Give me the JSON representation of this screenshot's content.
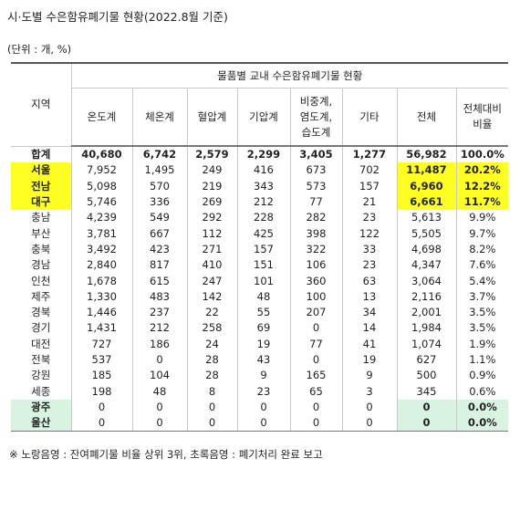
{
  "header": {
    "title": "시·도별 수은함유폐기물 현황(2022.8월 기준)",
    "unit": "(단위 : 개, %)"
  },
  "table": {
    "region_header": "지역",
    "group_header": "물품별 교내 수은함유폐기물 현황",
    "columns": [
      "온도계",
      "체온계",
      "혈압계",
      "기압계",
      "비중계,\n염도계,\n습도계",
      "기타",
      "전체",
      "전체대비\n비율"
    ],
    "rows": [
      [
        "합계",
        "40,680",
        "6,742",
        "2,579",
        "2,299",
        "3,405",
        "1,277",
        "56,982",
        "100.0%"
      ],
      [
        "서울",
        "7,952",
        "1,495",
        "249",
        "416",
        "673",
        "702",
        "11,487",
        "20.2%"
      ],
      [
        "전남",
        "5,098",
        "570",
        "219",
        "343",
        "573",
        "157",
        "6,960",
        "12.2%"
      ],
      [
        "대구",
        "5,746",
        "336",
        "269",
        "212",
        "77",
        "21",
        "6,661",
        "11.7%"
      ],
      [
        "충남",
        "4,239",
        "549",
        "292",
        "228",
        "282",
        "23",
        "5,613",
        "9.9%"
      ],
      [
        "부산",
        "3,781",
        "667",
        "112",
        "425",
        "398",
        "122",
        "5,505",
        "9.7%"
      ],
      [
        "충북",
        "3,492",
        "423",
        "271",
        "157",
        "322",
        "33",
        "4,698",
        "8.2%"
      ],
      [
        "경남",
        "2,840",
        "817",
        "410",
        "151",
        "106",
        "23",
        "4,347",
        "7.6%"
      ],
      [
        "인천",
        "1,678",
        "615",
        "247",
        "101",
        "360",
        "63",
        "3,064",
        "5.4%"
      ],
      [
        "제주",
        "1,330",
        "483",
        "142",
        "48",
        "100",
        "13",
        "2,116",
        "3.7%"
      ],
      [
        "경북",
        "1,446",
        "237",
        "22",
        "55",
        "207",
        "34",
        "2,001",
        "3.5%"
      ],
      [
        "경기",
        "1,431",
        "212",
        "258",
        "69",
        "0",
        "14",
        "1,984",
        "3.5%"
      ],
      [
        "대전",
        "727",
        "186",
        "24",
        "19",
        "77",
        "41",
        "1,074",
        "1.9%"
      ],
      [
        "전북",
        "537",
        "0",
        "28",
        "43",
        "0",
        "19",
        "627",
        "1.1%"
      ],
      [
        "강원",
        "185",
        "104",
        "28",
        "9",
        "165",
        "9",
        "500",
        "0.9%"
      ],
      [
        "세종",
        "198",
        "48",
        "8",
        "23",
        "65",
        "3",
        "345",
        "0.6%"
      ],
      [
        "광주",
        "0",
        "0",
        "0",
        "0",
        "0",
        "0",
        "0",
        "0.0%"
      ],
      [
        "울산",
        "0",
        "0",
        "0",
        "0",
        "0",
        "0",
        "0",
        "0.0%"
      ]
    ]
  },
  "footnote": "※ 노랑음영 : 잔여폐기물 비율 상위 3위, 초록음영 : 폐기처리 완료 보고"
}
